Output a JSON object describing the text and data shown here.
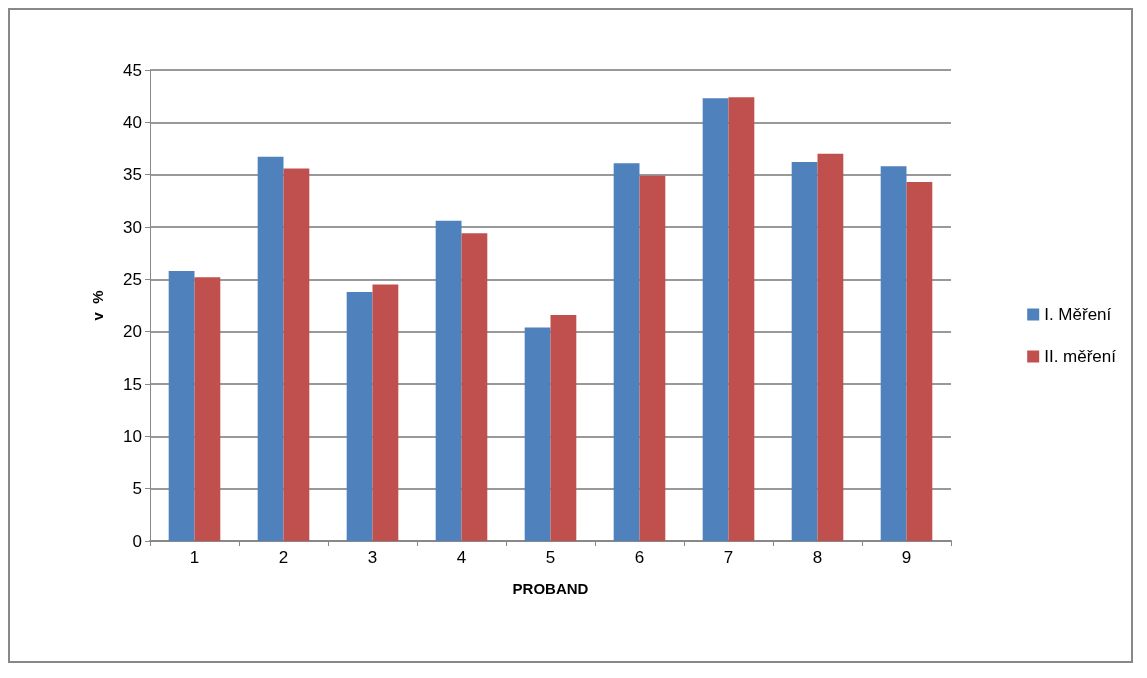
{
  "chart_data": {
    "type": "bar",
    "xlabel": "PROBAND",
    "ylabel": "v  %",
    "categories": [
      "1",
      "2",
      "3",
      "4",
      "5",
      "6",
      "7",
      "8",
      "9"
    ],
    "series": [
      {
        "name": "I. Měření",
        "color": "#4f81bd",
        "values": [
          25.8,
          36.7,
          23.8,
          30.6,
          20.4,
          36.1,
          42.3,
          36.2,
          35.8
        ]
      },
      {
        "name": "II. měření",
        "color": "#c0504d",
        "values": [
          25.2,
          35.6,
          24.5,
          29.4,
          21.6,
          34.9,
          42.4,
          37.0,
          34.3
        ]
      }
    ],
    "ylim": [
      0,
      45
    ],
    "yticks": [
      0,
      5,
      10,
      15,
      20,
      25,
      30,
      35,
      40,
      45
    ],
    "grid": "y",
    "legend": "right"
  }
}
